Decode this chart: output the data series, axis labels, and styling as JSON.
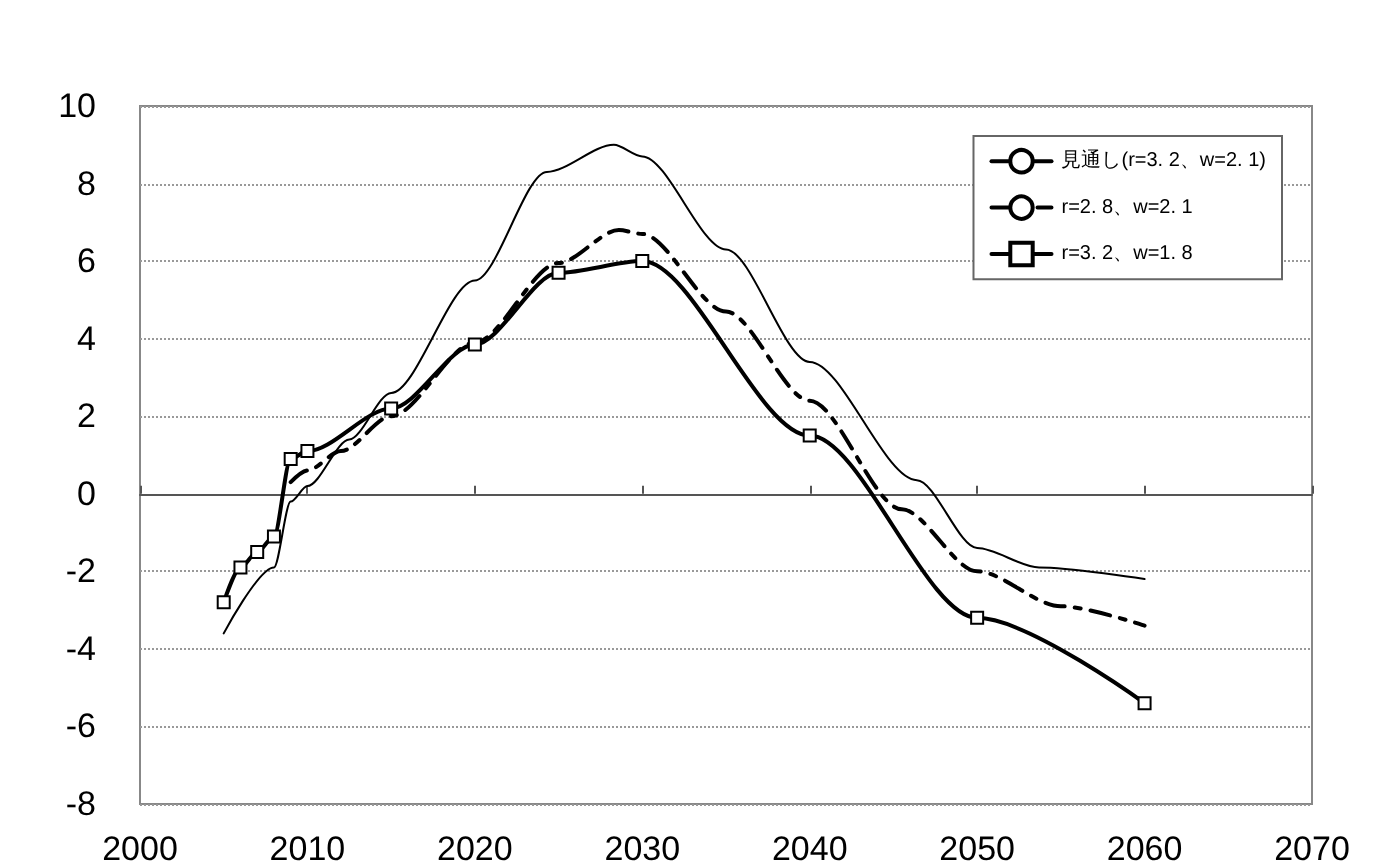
{
  "chart_data": {
    "type": "line",
    "xlim": [
      2000,
      2070
    ],
    "xticks": [
      2000,
      2010,
      2020,
      2030,
      2040,
      2050,
      2060,
      2070
    ],
    "ylim": [
      -8,
      10
    ],
    "yticks": [
      -8,
      -6,
      -4,
      -2,
      0,
      2,
      4,
      6,
      8,
      10
    ],
    "grid": "y",
    "legend": "top right",
    "series": [
      {
        "name": "見通し(r=3. 2、w=2. 1)",
        "color": "#000000",
        "line_style": "solid",
        "marker": "none",
        "x": [
          2005,
          2008,
          2009,
          2010,
          2012.5,
          2015,
          2020,
          2024.3,
          2028.3,
          2030,
          2035,
          2040,
          2046.4,
          2050,
          2053.7,
          2060
        ],
        "values": [
          -3.6,
          -1.9,
          -0.2,
          0.2,
          1.4,
          2.6,
          5.5,
          8.3,
          9.0,
          8.7,
          6.3,
          3.4,
          0.35,
          -1.4,
          -1.9,
          -2.2
        ]
      },
      {
        "name": "r=2. 8、w=2. 1",
        "color": "#000000",
        "line_style": "dashed",
        "marker": "none",
        "x": [
          2009,
          2010,
          2012,
          2015,
          2020,
          2025,
          2028.6,
          2030,
          2035,
          2040,
          2045.5,
          2050,
          2055,
          2060
        ],
        "values": [
          0.3,
          0.6,
          1.1,
          2.0,
          3.9,
          5.95,
          6.8,
          6.7,
          4.7,
          2.4,
          -0.4,
          -2.0,
          -2.9,
          -3.4
        ]
      },
      {
        "name": "r=3. 2、w=1. 8",
        "color": "#000000",
        "line_style": "solid",
        "marker": "square",
        "x": [
          2005,
          2006,
          2007,
          2008,
          2009,
          2010,
          2015,
          2020,
          2025,
          2030,
          2040,
          2050,
          2060
        ],
        "values": [
          -2.8,
          -1.9,
          -1.5,
          -1.1,
          0.9,
          1.1,
          2.2,
          3.85,
          5.7,
          6.0,
          1.5,
          -3.2,
          -5.4
        ]
      }
    ]
  }
}
